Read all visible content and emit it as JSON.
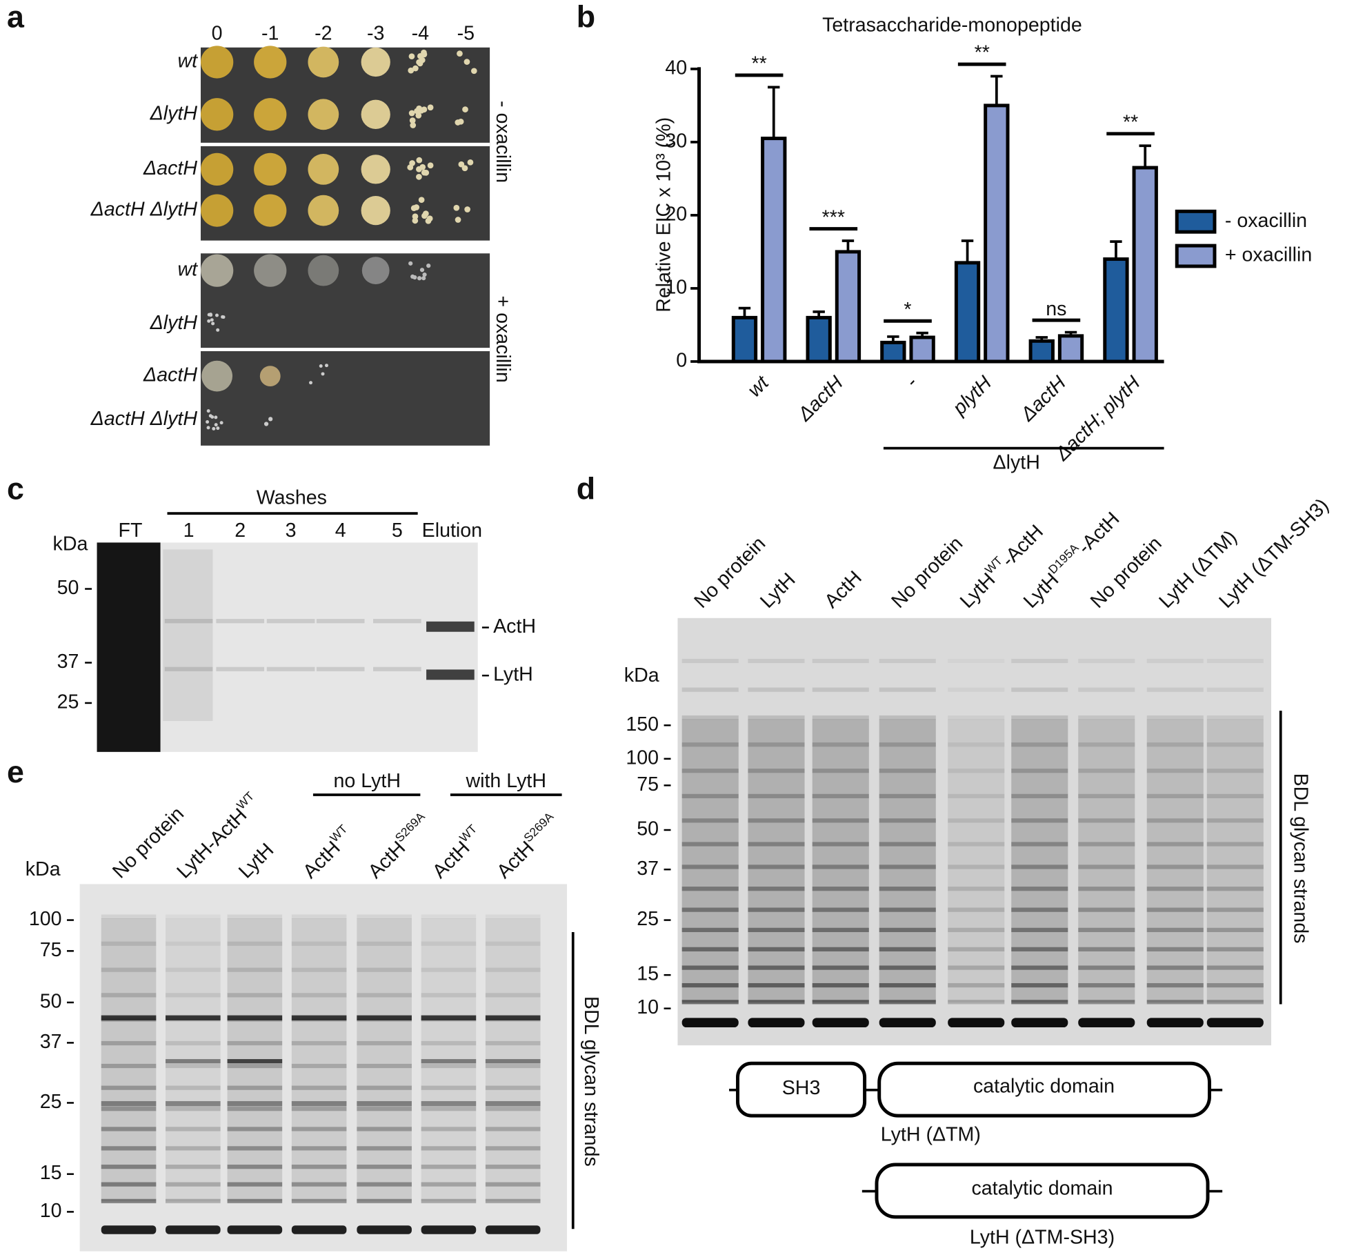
{
  "panel_labels": [
    "a",
    "b",
    "c",
    "d",
    "e"
  ],
  "panel_a": {
    "dilutions": [
      "0",
      "-1",
      "-2",
      "-3",
      "-4",
      "-5"
    ],
    "strains_top": [
      "wt",
      "ΔlytH",
      "ΔactH",
      "ΔactH ΔlytH"
    ],
    "strains_bottom": [
      "wt",
      "ΔlytH",
      "ΔactH",
      "ΔactH ΔlytH"
    ],
    "conditions": [
      "- oxacillin",
      "+ oxacillin"
    ]
  },
  "chart_data": {
    "type": "bar",
    "title": "Tetrasaccharide-monopeptide",
    "y_label": "Relative EIC x 10³ (%)",
    "categories": [
      "wt",
      "ΔactH",
      "-",
      "plytH",
      "ΔactH",
      "ΔactH; plytH"
    ],
    "series": [
      {
        "name": "- oxacillin",
        "color": "#1f5c9c",
        "values": [
          6,
          6,
          2.6,
          13.5,
          2.8,
          14
        ],
        "errors": [
          1.3,
          0.8,
          0.8,
          3,
          0.5,
          2.4
        ]
      },
      {
        "name": "+ oxacillin",
        "color": "#8a9bcf",
        "values": [
          30.5,
          15,
          3.3,
          35,
          3.5,
          26.5
        ],
        "errors": [
          7,
          1.5,
          0.6,
          4,
          0.5,
          3
        ]
      }
    ],
    "significance": [
      "**",
      "***",
      "*",
      "**",
      "ns",
      "**"
    ],
    "group_label": "ΔlytH",
    "ylim": [
      0,
      40
    ],
    "yticks": [
      0,
      10,
      20,
      30,
      40
    ],
    "legend": "right"
  },
  "panel_c": {
    "header": "Washes",
    "lanes": [
      "FT",
      "1",
      "2",
      "3",
      "4",
      "5",
      "Elution"
    ],
    "unit": "kDa",
    "markers": [
      "50",
      "37",
      "25"
    ],
    "bands": [
      "ActH",
      "LytH"
    ]
  },
  "panel_d": {
    "lanes": [
      {
        "text": "No protein"
      },
      {
        "text": "LytH"
      },
      {
        "text": "ActH"
      },
      {
        "text": "No protein"
      },
      {
        "text": "LytH",
        "sup": "WT",
        "tail": "-ActH"
      },
      {
        "text": "LytH",
        "sup": "D195A",
        "tail": "-ActH"
      },
      {
        "text": "No protein"
      },
      {
        "text": "LytH (ΔTM)"
      },
      {
        "text": "LytH (ΔTM-SH3)"
      }
    ],
    "unit": "kDa",
    "markers": [
      "150",
      "100",
      "75",
      "50",
      "37",
      "25",
      "15",
      "10"
    ],
    "side_label": "BDL glycan strands",
    "constructs": [
      {
        "domains": [
          "SH3",
          "catalytic domain"
        ],
        "name": "LytH (ΔTM)"
      },
      {
        "domains": [
          "catalytic domain"
        ],
        "name": "LytH (ΔTM-SH3)"
      }
    ]
  },
  "panel_e": {
    "groups": [
      "no LytH",
      "with LytH"
    ],
    "lanes": [
      {
        "text": "No protein"
      },
      {
        "text": "LytH-ActH",
        "sup": "WT"
      },
      {
        "text": "LytH"
      },
      {
        "text": "ActH",
        "sup": "WT"
      },
      {
        "text": "ActH",
        "sup": "S269A"
      },
      {
        "text": "ActH",
        "sup": "WT"
      },
      {
        "text": "ActH",
        "sup": "S269A"
      }
    ],
    "unit": "kDa",
    "markers": [
      "100",
      "75",
      "50",
      "37",
      "25",
      "15",
      "10"
    ],
    "side_label": "BDL glycan strands"
  }
}
